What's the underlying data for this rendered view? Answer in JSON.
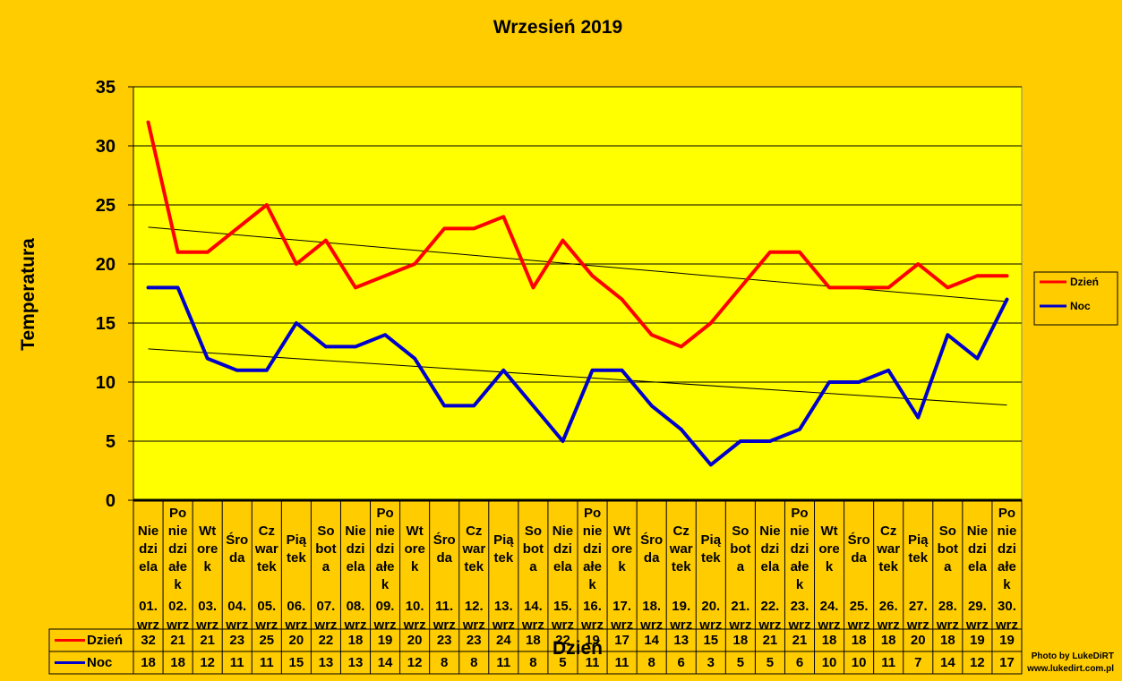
{
  "chart_data": {
    "type": "line",
    "title": "Wrzesień 2019",
    "xlabel": "Dzień",
    "ylabel": "Temperatura",
    "ylim": [
      0,
      35
    ],
    "yticks": [
      "0",
      "5",
      "10",
      "15",
      "20",
      "25",
      "30",
      "35"
    ],
    "grid": true,
    "legend": "right",
    "trendlines": true,
    "categories": [
      {
        "day": [
          "Nie",
          "dzi",
          "ela"
        ],
        "date": [
          "01.",
          "wrz"
        ]
      },
      {
        "day": [
          "Po",
          "nie",
          "dzi",
          "ałe",
          "k"
        ],
        "date": [
          "02.",
          "wrz"
        ]
      },
      {
        "day": [
          "Wt",
          "ore",
          "k"
        ],
        "date": [
          "03.",
          "wrz"
        ]
      },
      {
        "day": [
          "Śro",
          "da"
        ],
        "date": [
          "04.",
          "wrz"
        ]
      },
      {
        "day": [
          "Cz",
          "war",
          "tek"
        ],
        "date": [
          "05.",
          "wrz"
        ]
      },
      {
        "day": [
          "Pią",
          "tek"
        ],
        "date": [
          "06.",
          "wrz"
        ]
      },
      {
        "day": [
          "So",
          "bot",
          "a"
        ],
        "date": [
          "07.",
          "wrz"
        ]
      },
      {
        "day": [
          "Nie",
          "dzi",
          "ela"
        ],
        "date": [
          "08.",
          "wrz"
        ]
      },
      {
        "day": [
          "Po",
          "nie",
          "dzi",
          "ałe",
          "k"
        ],
        "date": [
          "09.",
          "wrz"
        ]
      },
      {
        "day": [
          "Wt",
          "ore",
          "k"
        ],
        "date": [
          "10.",
          "wrz"
        ]
      },
      {
        "day": [
          "Śro",
          "da"
        ],
        "date": [
          "11.",
          "wrz"
        ]
      },
      {
        "day": [
          "Cz",
          "war",
          "tek"
        ],
        "date": [
          "12.",
          "wrz"
        ]
      },
      {
        "day": [
          "Pią",
          "tek"
        ],
        "date": [
          "13.",
          "wrz"
        ]
      },
      {
        "day": [
          "So",
          "bot",
          "a"
        ],
        "date": [
          "14.",
          "wrz"
        ]
      },
      {
        "day": [
          "Nie",
          "dzi",
          "ela"
        ],
        "date": [
          "15.",
          "wrz"
        ]
      },
      {
        "day": [
          "Po",
          "nie",
          "dzi",
          "ałe",
          "k"
        ],
        "date": [
          "16.",
          "wrz"
        ]
      },
      {
        "day": [
          "Wt",
          "ore",
          "k"
        ],
        "date": [
          "17.",
          "wrz"
        ]
      },
      {
        "day": [
          "Śro",
          "da"
        ],
        "date": [
          "18.",
          "wrz"
        ]
      },
      {
        "day": [
          "Cz",
          "war",
          "tek"
        ],
        "date": [
          "19.",
          "wrz"
        ]
      },
      {
        "day": [
          "Pią",
          "tek"
        ],
        "date": [
          "20.",
          "wrz"
        ]
      },
      {
        "day": [
          "So",
          "bot",
          "a"
        ],
        "date": [
          "21.",
          "wrz"
        ]
      },
      {
        "day": [
          "Nie",
          "dzi",
          "ela"
        ],
        "date": [
          "22.",
          "wrz"
        ]
      },
      {
        "day": [
          "Po",
          "nie",
          "dzi",
          "ałe",
          "k"
        ],
        "date": [
          "23.",
          "wrz"
        ]
      },
      {
        "day": [
          "Wt",
          "ore",
          "k"
        ],
        "date": [
          "24.",
          "wrz"
        ]
      },
      {
        "day": [
          "Śro",
          "da"
        ],
        "date": [
          "25.",
          "wrz"
        ]
      },
      {
        "day": [
          "Cz",
          "war",
          "tek"
        ],
        "date": [
          "26.",
          "wrz"
        ]
      },
      {
        "day": [
          "Pią",
          "tek"
        ],
        "date": [
          "27.",
          "wrz"
        ]
      },
      {
        "day": [
          "So",
          "bot",
          "a"
        ],
        "date": [
          "28.",
          "wrz"
        ]
      },
      {
        "day": [
          "Nie",
          "dzi",
          "ela"
        ],
        "date": [
          "29.",
          "wrz"
        ]
      },
      {
        "day": [
          "Po",
          "nie",
          "dzi",
          "ałe",
          "k"
        ],
        "date": [
          "30.",
          "wrz"
        ]
      }
    ],
    "series": [
      {
        "name": "Dzień",
        "color": "#FF0000",
        "values": [
          32,
          21,
          21,
          23,
          25,
          20,
          22,
          18,
          19,
          20,
          23,
          23,
          24,
          18,
          22,
          19,
          17,
          14,
          13,
          15,
          18,
          21,
          21,
          18,
          18,
          18,
          20,
          18,
          19,
          19
        ]
      },
      {
        "name": "Noc",
        "color": "#0000CC",
        "values": [
          18,
          18,
          12,
          11,
          11,
          15,
          13,
          13,
          14,
          12,
          8,
          8,
          11,
          8,
          5,
          11,
          11,
          8,
          6,
          3,
          5,
          5,
          6,
          10,
          10,
          11,
          7,
          14,
          12,
          17
        ]
      }
    ],
    "colors": {
      "background": "#FFCC00",
      "plot_area": "#FFFF00",
      "grid": "#000000",
      "trendline": "#000000"
    }
  },
  "credit": {
    "line1": "Photo by LukeDiRT",
    "line2": "www.lukedirt.com.pl"
  }
}
